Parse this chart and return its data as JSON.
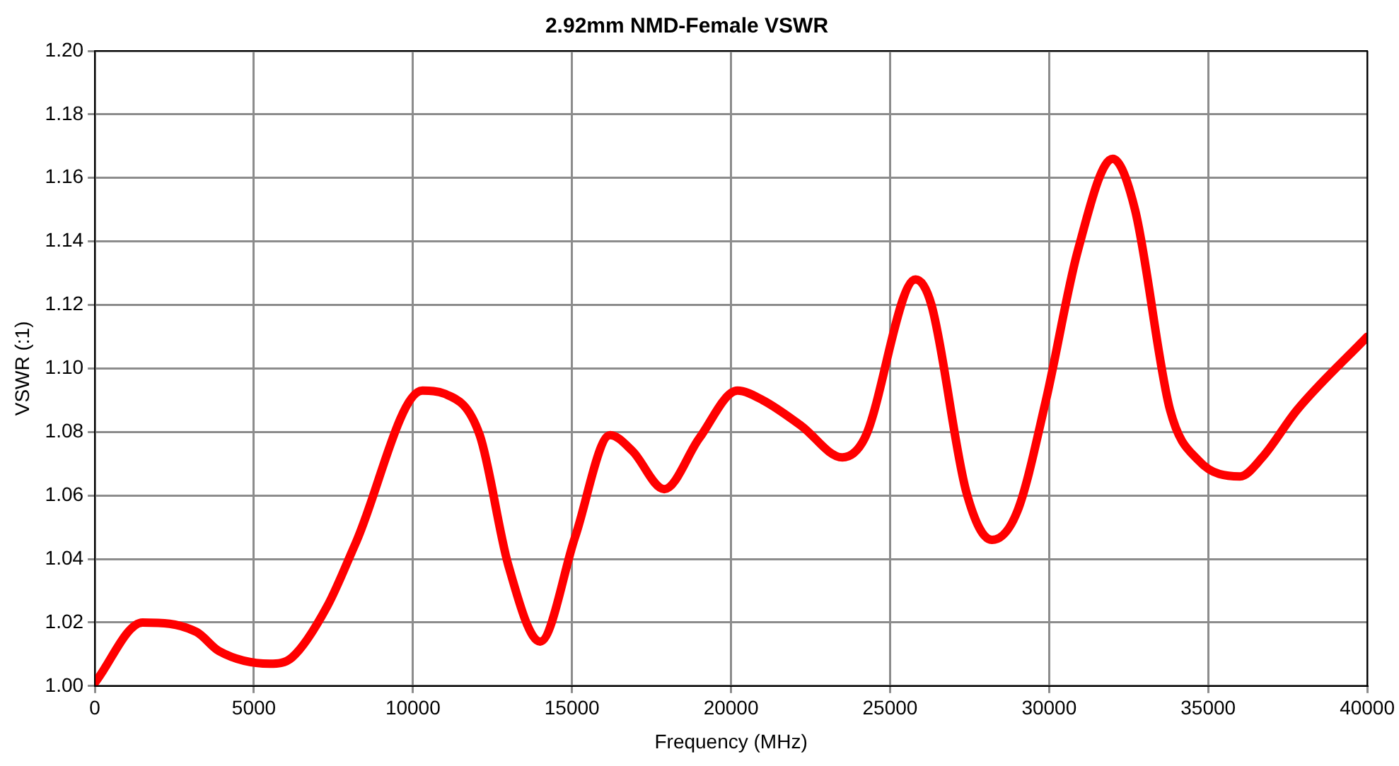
{
  "chart_data": {
    "type": "line",
    "title": "2.92mm NMD-Female VSWR",
    "xlabel": "Frequency (MHz)",
    "ylabel": "VSWR (:1)",
    "x": [
      0,
      1500,
      3200,
      3900,
      5500,
      6200,
      7300,
      8200,
      10300,
      11000,
      12100,
      13000,
      14000,
      15100,
      16200,
      16900,
      17900,
      19000,
      20200,
      21000,
      22200,
      23500,
      24200,
      25800,
      26300,
      27400,
      28200,
      29000,
      29900,
      30900,
      32000,
      32700,
      33800,
      34700,
      36000,
      36700,
      37800,
      40000
    ],
    "series": [
      {
        "color": "#ff0000",
        "values": [
          1.001,
          1.02,
          1.017,
          1.011,
          1.007,
          1.009,
          1.025,
          1.045,
          1.093,
          1.092,
          1.079,
          1.038,
          1.014,
          1.047,
          1.079,
          1.074,
          1.062,
          1.078,
          1.093,
          1.09,
          1.082,
          1.072,
          1.078,
          1.128,
          1.12,
          1.061,
          1.046,
          1.055,
          1.09,
          1.137,
          1.166,
          1.15,
          1.087,
          1.071,
          1.066,
          1.072,
          1.087,
          1.11
        ]
      }
    ],
    "xlim": [
      0,
      40000
    ],
    "xticks": [
      0,
      5000,
      10000,
      15000,
      20000,
      25000,
      30000,
      35000,
      40000
    ],
    "ylim": [
      1.0,
      1.2
    ],
    "yticks": [
      {
        "value": 1.0,
        "label": "1.00"
      },
      {
        "value": 1.02,
        "label": "1.02"
      },
      {
        "value": 1.04,
        "label": "1.04"
      },
      {
        "value": 1.06,
        "label": "1.06"
      },
      {
        "value": 1.08,
        "label": "1.08"
      },
      {
        "value": 1.1,
        "label": "1.10"
      },
      {
        "value": 1.12,
        "label": "1.12"
      },
      {
        "value": 1.14,
        "label": "1.14"
      },
      {
        "value": 1.16,
        "label": "1.16"
      },
      {
        "value": 1.18,
        "label": "1.18"
      },
      {
        "value": 1.2,
        "label": "1.20"
      }
    ],
    "grid": true,
    "legend": false,
    "marker": "none",
    "line_style": "solid"
  }
}
